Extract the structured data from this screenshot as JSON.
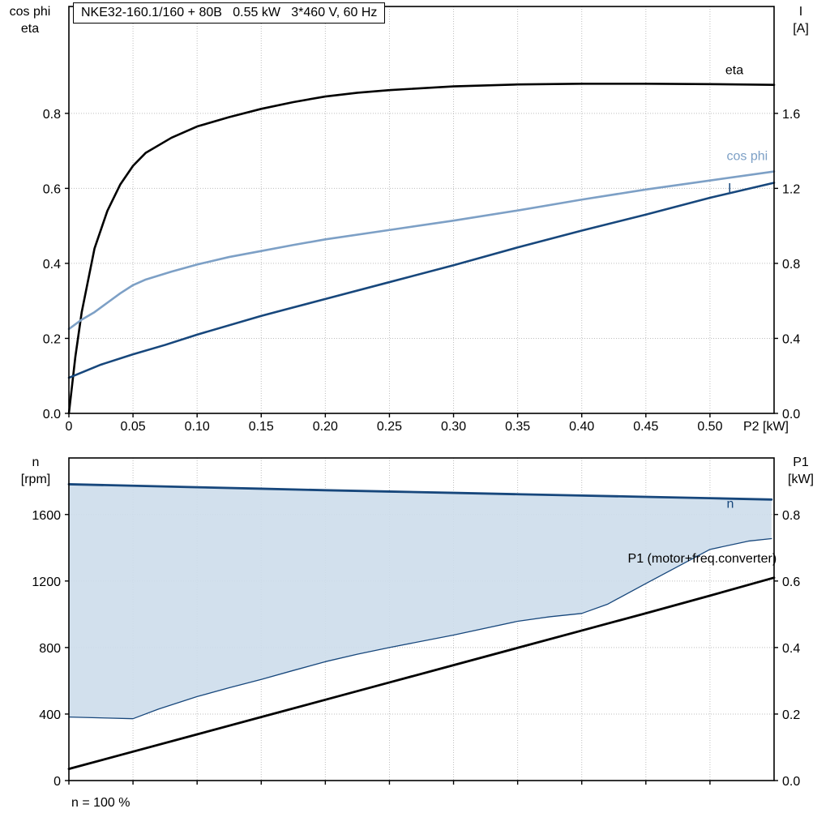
{
  "header": {
    "title": "NKE32-160.1/160 + 80B   0.55 kW   3*460 V, 60 Hz"
  },
  "top_chart": {
    "left_axis_title_line1": "cos phi",
    "left_axis_title_line2": "eta",
    "right_axis_title_line1": "I",
    "right_axis_title_line2": "[A]"
  },
  "bottom_chart": {
    "left_axis_title_line1": "n",
    "left_axis_title_line2": "[rpm]",
    "right_axis_title_line1": "P1",
    "right_axis_title_line2": "[kW]",
    "footnote": "n = 100 %"
  },
  "colors": {
    "eta": "#000000",
    "cos_phi": "#7da0c6",
    "current": "#17477c",
    "band_fill": "#cdddeb",
    "grid": "#bdbdbd"
  },
  "chart_data": [
    {
      "type": "line",
      "title": "NKE32-160.1/160 + 80B   0.55 kW   3*460 V, 60 Hz",
      "xlabel": "P2 [kW]",
      "grid": true,
      "legend_position": "inline-right",
      "x_axis": {
        "lim": [
          0,
          0.55
        ],
        "ticks": [
          0,
          0.05,
          0.1,
          0.15,
          0.2,
          0.25,
          0.3,
          0.35,
          0.4,
          0.45,
          0.5
        ],
        "tick_labels": [
          "0",
          "0.05",
          "0.10",
          "0.15",
          "0.20",
          "0.25",
          "0.30",
          "0.35",
          "0.40",
          "0.45",
          "0.50"
        ],
        "end_label": "P2 [kW]"
      },
      "left_axis": {
        "label": "cos phi / eta",
        "lim": [
          0,
          1.085
        ],
        "ticks": [
          0,
          0.2,
          0.4,
          0.6,
          0.8
        ],
        "tick_labels": [
          "0.0",
          "0.2",
          "0.4",
          "0.6",
          "0.8"
        ]
      },
      "right_axis": {
        "label": "I [A]",
        "lim": [
          0,
          2.17
        ],
        "ticks": [
          0,
          0.4,
          0.8,
          1.2,
          1.6
        ],
        "tick_labels": [
          "0.0",
          "0.4",
          "0.8",
          "1.2",
          "1.6"
        ]
      },
      "series": [
        {
          "name": "eta",
          "axis": "left",
          "color": "#000000",
          "width": 2.6,
          "x": [
            0,
            0.005,
            0.01,
            0.02,
            0.03,
            0.04,
            0.05,
            0.06,
            0.08,
            0.1,
            0.125,
            0.15,
            0.175,
            0.2,
            0.225,
            0.25,
            0.3,
            0.35,
            0.4,
            0.45,
            0.5,
            0.55
          ],
          "y": [
            0,
            0.15,
            0.27,
            0.44,
            0.54,
            0.61,
            0.66,
            0.695,
            0.735,
            0.765,
            0.79,
            0.812,
            0.83,
            0.845,
            0.855,
            0.862,
            0.872,
            0.877,
            0.879,
            0.879,
            0.878,
            0.876
          ],
          "label": {
            "x": 0.512,
            "y": 0.905,
            "anchor": "start"
          }
        },
        {
          "name": "cos phi",
          "axis": "left",
          "color": "#7da0c6",
          "width": 2.6,
          "x": [
            0,
            0.01,
            0.02,
            0.03,
            0.04,
            0.05,
            0.06,
            0.08,
            0.1,
            0.125,
            0.15,
            0.175,
            0.2,
            0.25,
            0.3,
            0.35,
            0.4,
            0.45,
            0.5,
            0.55
          ],
          "y": [
            0.225,
            0.25,
            0.27,
            0.295,
            0.32,
            0.342,
            0.357,
            0.378,
            0.397,
            0.417,
            0.433,
            0.449,
            0.464,
            0.489,
            0.514,
            0.541,
            0.57,
            0.597,
            0.621,
            0.645
          ],
          "label": {
            "x": 0.513,
            "y": 0.675,
            "anchor": "start"
          }
        },
        {
          "name": "I",
          "axis": "right",
          "color": "#17477c",
          "width": 2.6,
          "x": [
            0,
            0.025,
            0.05,
            0.075,
            0.1,
            0.15,
            0.2,
            0.25,
            0.3,
            0.35,
            0.4,
            0.45,
            0.5,
            0.55
          ],
          "y": [
            0.19,
            0.26,
            0.315,
            0.365,
            0.42,
            0.52,
            0.61,
            0.7,
            0.79,
            0.885,
            0.975,
            1.06,
            1.15,
            1.23
          ],
          "label": {
            "x": 0.514,
            "y": 1.18,
            "anchor": "start"
          }
        }
      ]
    },
    {
      "type": "line",
      "title": "",
      "xlabel": "",
      "grid": true,
      "annotation": "n = 100 %",
      "x_axis": {
        "lim": [
          0,
          0.55
        ],
        "ticks": [
          0,
          0.05,
          0.1,
          0.15,
          0.2,
          0.25,
          0.3,
          0.35,
          0.4,
          0.45,
          0.5
        ],
        "tick_labels": [],
        "end_label": ""
      },
      "left_axis": {
        "label": "n [rpm]",
        "lim": [
          0,
          1940
        ],
        "ticks": [
          0,
          400,
          800,
          1200,
          1600
        ],
        "tick_labels": [
          "0",
          "400",
          "800",
          "1200",
          "1600"
        ]
      },
      "right_axis": {
        "label": "P1 [kW]",
        "lim": [
          0,
          0.97
        ],
        "ticks": [
          0,
          0.2,
          0.4,
          0.6,
          0.8
        ],
        "tick_labels": [
          "0.0",
          "0.2",
          "0.4",
          "0.6",
          "0.8"
        ]
      },
      "band": {
        "name": "speed-control-range",
        "fill": "#cdddeb",
        "upper": {
          "x": [
            0,
            0.05,
            0.1,
            0.15,
            0.2,
            0.25,
            0.3,
            0.35,
            0.4,
            0.45,
            0.5,
            0.548
          ],
          "y": [
            1782,
            1773,
            1764,
            1755,
            1746,
            1738,
            1730,
            1722,
            1714,
            1706,
            1698,
            1690
          ]
        },
        "lower": {
          "x": [
            0,
            0.03,
            0.05,
            0.07,
            0.1,
            0.125,
            0.15,
            0.175,
            0.2,
            0.225,
            0.25,
            0.3,
            0.35,
            0.375,
            0.4,
            0.42,
            0.45,
            0.5,
            0.53,
            0.548
          ],
          "y": [
            382,
            376,
            372,
            430,
            505,
            558,
            608,
            662,
            715,
            760,
            800,
            875,
            958,
            985,
            1005,
            1060,
            1185,
            1390,
            1440,
            1455
          ]
        }
      },
      "series": [
        {
          "name": "n",
          "axis": "left",
          "color": "#17477c",
          "width": 2.8,
          "x": [
            0,
            0.05,
            0.1,
            0.15,
            0.2,
            0.25,
            0.3,
            0.35,
            0.4,
            0.45,
            0.5,
            0.548
          ],
          "y": [
            1782,
            1773,
            1764,
            1755,
            1746,
            1738,
            1730,
            1722,
            1714,
            1706,
            1698,
            1690
          ],
          "label": {
            "x": 0.513,
            "y": 1640,
            "anchor": "start"
          }
        },
        {
          "name": "",
          "axis": "left",
          "color": "#17477c",
          "width": 1.3,
          "x": [
            0,
            0.03,
            0.05,
            0.07,
            0.1,
            0.125,
            0.15,
            0.175,
            0.2,
            0.225,
            0.25,
            0.3,
            0.35,
            0.375,
            0.4,
            0.42,
            0.45,
            0.5,
            0.53,
            0.548
          ],
          "y": [
            382,
            376,
            372,
            430,
            505,
            558,
            608,
            662,
            715,
            760,
            800,
            875,
            958,
            985,
            1005,
            1060,
            1185,
            1390,
            1440,
            1455
          ]
        },
        {
          "name": "P1 (motor+freq.converter)",
          "axis": "right",
          "color": "#000000",
          "width": 2.8,
          "x": [
            0,
            0.05,
            0.1,
            0.15,
            0.2,
            0.25,
            0.3,
            0.35,
            0.4,
            0.45,
            0.5,
            0.55
          ],
          "y": [
            0.035,
            0.087,
            0.139,
            0.191,
            0.243,
            0.295,
            0.347,
            0.399,
            0.451,
            0.503,
            0.556,
            0.61
          ],
          "label": {
            "x": 0.552,
            "y": 0.655,
            "anchor": "end"
          }
        }
      ]
    }
  ]
}
